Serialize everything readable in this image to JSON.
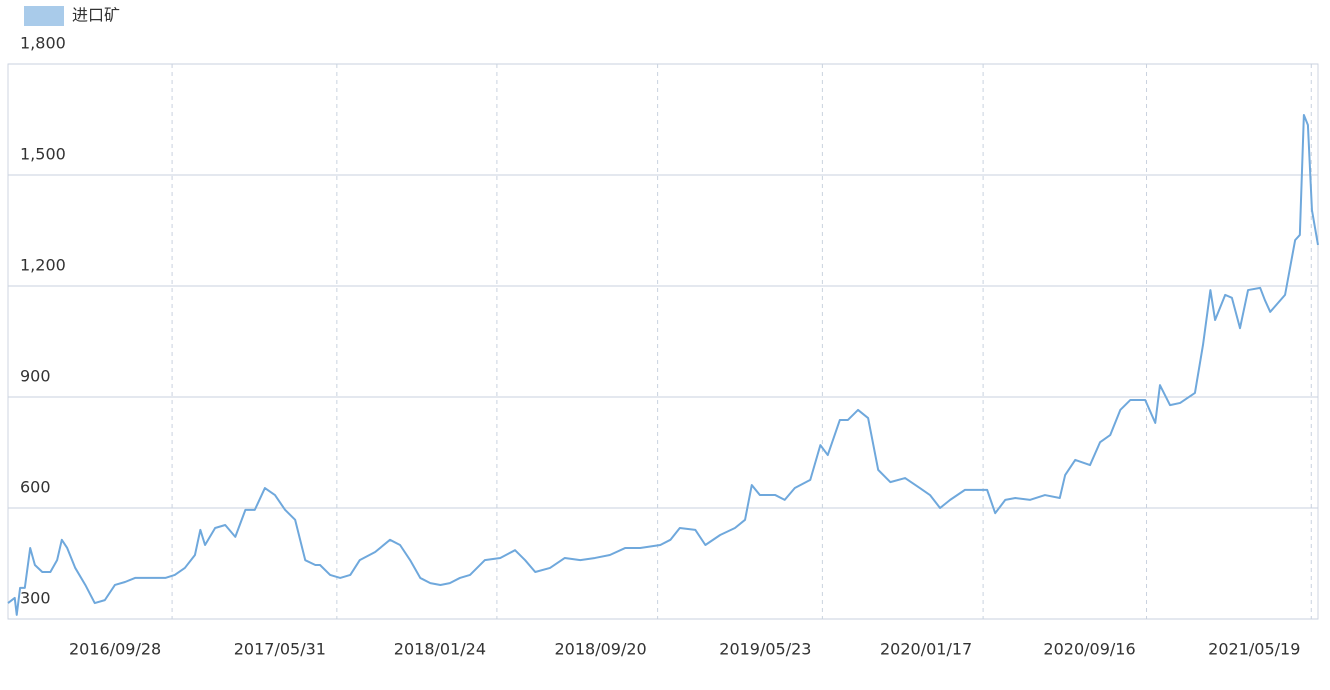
{
  "chart_data": {
    "type": "line",
    "x": [
      "2016/01/28",
      "2016/02/07",
      "2016/02/10",
      "2016/02/15",
      "2016/02/22",
      "2016/03/01",
      "2016/03/08",
      "2016/03/19",
      "2016/03/31",
      "2016/04/10",
      "2016/04/17",
      "2016/04/25",
      "2016/05/07",
      "2016/05/22",
      "2016/06/05",
      "2016/06/20",
      "2016/07/05",
      "2016/07/20",
      "2016/08/04",
      "2016/08/26",
      "2016/09/18",
      "2016/10/02",
      "2016/10/17",
      "2016/11/01",
      "2016/11/09",
      "2016/11/16",
      "2016/12/01",
      "2016/12/16",
      "2016/12/31",
      "2017/01/15",
      "2017/01/29",
      "2017/02/13",
      "2017/02/28",
      "2017/03/15",
      "2017/03/30",
      "2017/04/14",
      "2017/04/29",
      "2017/05/06",
      "2017/05/21",
      "2017/06/05",
      "2017/06/20",
      "2017/07/04",
      "2017/07/27",
      "2017/08/18",
      "2017/09/02",
      "2017/09/17",
      "2017/10/02",
      "2017/10/17",
      "2017/11/01",
      "2017/11/15",
      "2017/11/30",
      "2017/12/15",
      "2018/01/06",
      "2018/01/29",
      "2018/02/20",
      "2018/03/07",
      "2018/03/22",
      "2018/04/13",
      "2018/05/05",
      "2018/05/28",
      "2018/06/19",
      "2018/07/11",
      "2018/08/03",
      "2018/08/25",
      "2018/09/24",
      "2018/10/09",
      "2018/10/23",
      "2018/11/15",
      "2018/11/30",
      "2018/12/22",
      "2019/01/13",
      "2019/01/28",
      "2019/02/07",
      "2019/02/19",
      "2019/03/14",
      "2019/03/28",
      "2019/04/12",
      "2019/05/05",
      "2019/05/20",
      "2019/05/31",
      "2019/06/18",
      "2019/06/30",
      "2019/07/15",
      "2019/07/30",
      "2019/08/14",
      "2019/09/01",
      "2019/09/23",
      "2019/10/15",
      "2019/10/30",
      "2019/11/14",
      "2019/11/29",
      "2019/12/21",
      "2020/01/05",
      "2020/01/23",
      "2020/02/04",
      "2020/02/19",
      "2020/03/05",
      "2020/03/27",
      "2020/04/18",
      "2020/05/10",
      "2020/05/18",
      "2020/06/02",
      "2020/06/24",
      "2020/07/09",
      "2020/07/24",
      "2020/08/08",
      "2020/08/23",
      "2020/09/14",
      "2020/09/29",
      "2020/10/06",
      "2020/10/21",
      "2020/11/05",
      "2020/11/27",
      "2020/12/09",
      "2020/12/20",
      "2020/12/27",
      "2021/01/11",
      "2021/01/21",
      "2021/02/02",
      "2021/02/14",
      "2021/03/04",
      "2021/03/11",
      "2021/03/19",
      "2021/04/10",
      "2021/04/25",
      "2021/05/02",
      "2021/05/08",
      "2021/05/14",
      "2021/05/20",
      "2021/05/29"
    ],
    "series": [
      {
        "name": "进口矿",
        "color": "#6fa8dc",
        "values": [
          343,
          357,
          311,
          384,
          384,
          492,
          446,
          427,
          427,
          459,
          514,
          492,
          438,
          392,
          343,
          351,
          392,
          400,
          411,
          411,
          411,
          419,
          438,
          473,
          541,
          500,
          546,
          554,
          522,
          595,
          595,
          654,
          635,
          595,
          568,
          459,
          446,
          446,
          419,
          411,
          419,
          459,
          481,
          514,
          500,
          459,
          411,
          397,
          392,
          397,
          411,
          419,
          459,
          465,
          486,
          459,
          427,
          438,
          465,
          459,
          465,
          473,
          492,
          492,
          500,
          514,
          546,
          541,
          500,
          527,
          546,
          568,
          662,
          635,
          635,
          622,
          654,
          676,
          770,
          743,
          838,
          838,
          865,
          843,
          703,
          670,
          681,
          654,
          635,
          600,
          622,
          649,
          649,
          649,
          586,
          622,
          627,
          622,
          635,
          627,
          689,
          730,
          716,
          778,
          797,
          865,
          892,
          892,
          830,
          932,
          878,
          884,
          911,
          1041,
          1189,
          1108,
          1176,
          1168,
          1086,
          1189,
          1195,
          1162,
          1130,
          1176,
          1324,
          1338,
          1662,
          1635,
          1405,
          1311
        ]
      }
    ],
    "xlim": [
      "2016/01/28",
      "2021/05/29"
    ],
    "xticks": [
      "2016/09/28",
      "2017/05/31",
      "2018/01/24",
      "2018/09/20",
      "2019/05/23",
      "2020/01/17",
      "2020/09/16",
      "2021/05/19"
    ],
    "ylim": [
      300,
      1800
    ],
    "yticks": [
      300,
      600,
      900,
      {
        "value": 1200,
        "label": "1,200"
      },
      {
        "value": 1500,
        "label": "1,500"
      },
      {
        "value": 1800,
        "label": "1,800"
      }
    ],
    "grid": true
  }
}
